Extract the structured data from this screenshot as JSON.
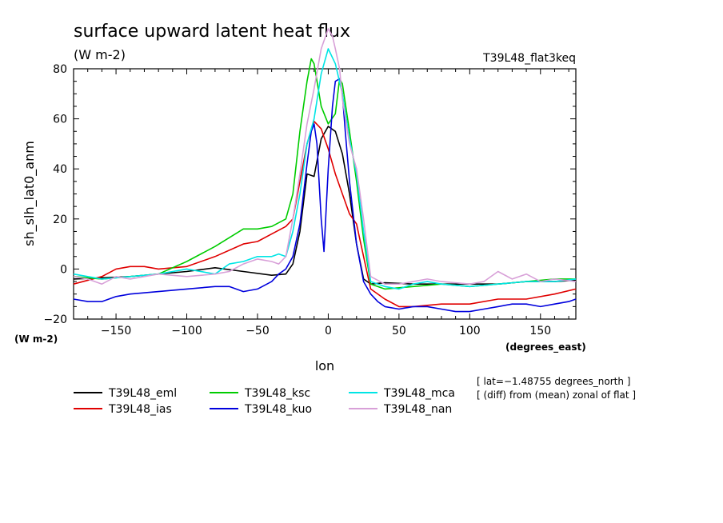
{
  "chart_data": {
    "type": "line",
    "title": "surface upward latent heat flux",
    "units": "(W m-2)",
    "experiment": "T39L48_flat3keq",
    "xlabel": "lon",
    "xunits": "(degrees_east)",
    "ylabel": "sh_slh_lat0_anm",
    "yunits": "(W m-2)",
    "xlim": [
      -180,
      175
    ],
    "ylim": [
      -20,
      80
    ],
    "xticks": [
      -150,
      -100,
      -50,
      0,
      50,
      100,
      150
    ],
    "xtick_labels": [
      "−150",
      "−100",
      "−50",
      "0",
      "50",
      "100",
      "150"
    ],
    "yticks": [
      -20,
      0,
      20,
      40,
      60,
      80
    ],
    "ytick_labels": [
      "−20",
      "0",
      "20",
      "40",
      "60",
      "80"
    ],
    "grid": false,
    "legend_position": "bottom",
    "notes": [
      "[ lat=−1.48755 degrees_north ]",
      "[ (diff) from (mean) zonal of flat ]"
    ],
    "series": [
      {
        "name": "T39L48_eml",
        "color": "#000000",
        "x": [
          -180,
          -160,
          -140,
          -120,
          -100,
          -80,
          -60,
          -40,
          -30,
          -25,
          -20,
          -15,
          -10,
          -5,
          0,
          5,
          10,
          15,
          20,
          25,
          30,
          40,
          60,
          80,
          100,
          120,
          140,
          160,
          175
        ],
        "y": [
          -4,
          -3.5,
          -3,
          -2,
          -1,
          0.5,
          -1,
          -2.5,
          -2,
          2,
          15,
          38,
          37,
          52,
          57,
          55,
          46,
          30,
          10,
          -4,
          -6,
          -5.5,
          -6,
          -6,
          -6,
          -6,
          -5,
          -5,
          -4.5
        ]
      },
      {
        "name": "T39L48_ias",
        "color": "#e00000",
        "x": [
          -180,
          -160,
          -150,
          -140,
          -130,
          -120,
          -100,
          -80,
          -60,
          -50,
          -40,
          -30,
          -25,
          -20,
          -15,
          -10,
          -5,
          0,
          5,
          10,
          15,
          20,
          25,
          30,
          40,
          50,
          60,
          80,
          100,
          120,
          140,
          160,
          175
        ],
        "y": [
          -6,
          -3,
          0,
          1,
          1,
          0,
          1,
          5,
          10,
          11,
          14,
          17,
          20,
          35,
          50,
          59,
          56,
          48,
          38,
          30,
          22,
          18,
          5,
          -8,
          -12,
          -15,
          -15,
          -14,
          -14,
          -12,
          -12,
          -10,
          -8
        ]
      },
      {
        "name": "T39L48_ksc",
        "color": "#00cc00",
        "x": [
          -180,
          -160,
          -140,
          -120,
          -100,
          -80,
          -60,
          -50,
          -40,
          -30,
          -25,
          -20,
          -15,
          -12,
          -10,
          -5,
          0,
          5,
          8,
          10,
          15,
          20,
          25,
          30,
          40,
          60,
          80,
          100,
          120,
          140,
          160,
          175
        ],
        "y": [
          -3,
          -4,
          -3,
          -2,
          3,
          9,
          16,
          16,
          17,
          20,
          30,
          55,
          75,
          84,
          82,
          65,
          58,
          62,
          76,
          74,
          55,
          35,
          12,
          -6,
          -8,
          -7,
          -6,
          -7,
          -6,
          -5,
          -4,
          -4
        ]
      },
      {
        "name": "T39L48_kuo",
        "color": "#0000dd",
        "x": [
          -180,
          -170,
          -160,
          -150,
          -140,
          -120,
          -100,
          -80,
          -70,
          -60,
          -50,
          -40,
          -35,
          -30,
          -25,
          -20,
          -15,
          -12,
          -10,
          -8,
          -5,
          -3,
          0,
          3,
          5,
          8,
          10,
          12,
          15,
          20,
          25,
          30,
          35,
          40,
          50,
          60,
          70,
          80,
          90,
          100,
          110,
          120,
          130,
          140,
          150,
          160,
          170,
          175
        ],
        "y": [
          -12,
          -13,
          -13,
          -11,
          -10,
          -9,
          -8,
          -7,
          -7,
          -9,
          -8,
          -5,
          -2,
          0,
          5,
          18,
          42,
          55,
          58,
          50,
          20,
          7,
          40,
          65,
          75,
          76,
          70,
          55,
          35,
          10,
          -5,
          -10,
          -13,
          -15,
          -16,
          -15,
          -15,
          -16,
          -17,
          -17,
          -16,
          -15,
          -14,
          -14,
          -15,
          -14,
          -13,
          -12
        ]
      },
      {
        "name": "T39L48_mca",
        "color": "#00e5e5",
        "x": [
          -180,
          -160,
          -140,
          -120,
          -100,
          -80,
          -70,
          -60,
          -50,
          -40,
          -35,
          -30,
          -25,
          -20,
          -15,
          -10,
          -5,
          0,
          5,
          10,
          15,
          20,
          25,
          30,
          40,
          50,
          60,
          70,
          80,
          100,
          120,
          140,
          160,
          175
        ],
        "y": [
          -2,
          -4,
          -3,
          -2,
          0,
          -2,
          2,
          3,
          5,
          5,
          6,
          5,
          15,
          30,
          50,
          60,
          78,
          88,
          82,
          70,
          52,
          38,
          15,
          -5,
          -7,
          -8,
          -6,
          -5,
          -6,
          -7,
          -6,
          -5,
          -5,
          -4
        ]
      },
      {
        "name": "T39L48_nan",
        "color": "#d8a0d8",
        "x": [
          -180,
          -170,
          -160,
          -150,
          -140,
          -120,
          -100,
          -80,
          -70,
          -60,
          -50,
          -40,
          -35,
          -30,
          -25,
          -20,
          -15,
          -10,
          -5,
          0,
          3,
          5,
          8,
          10,
          15,
          20,
          25,
          30,
          40,
          50,
          60,
          70,
          80,
          100,
          110,
          120,
          130,
          140,
          150,
          160,
          175
        ],
        "y": [
          -3,
          -4,
          -6,
          -3,
          -4,
          -2,
          -3,
          -2,
          -1,
          2,
          4,
          3,
          2,
          5,
          20,
          38,
          58,
          72,
          88,
          96,
          93,
          88,
          80,
          68,
          50,
          40,
          20,
          -3,
          -6,
          -6,
          -5,
          -4,
          -5,
          -6,
          -5,
          -1,
          -4,
          -2,
          -5,
          -4,
          -5
        ]
      }
    ]
  }
}
